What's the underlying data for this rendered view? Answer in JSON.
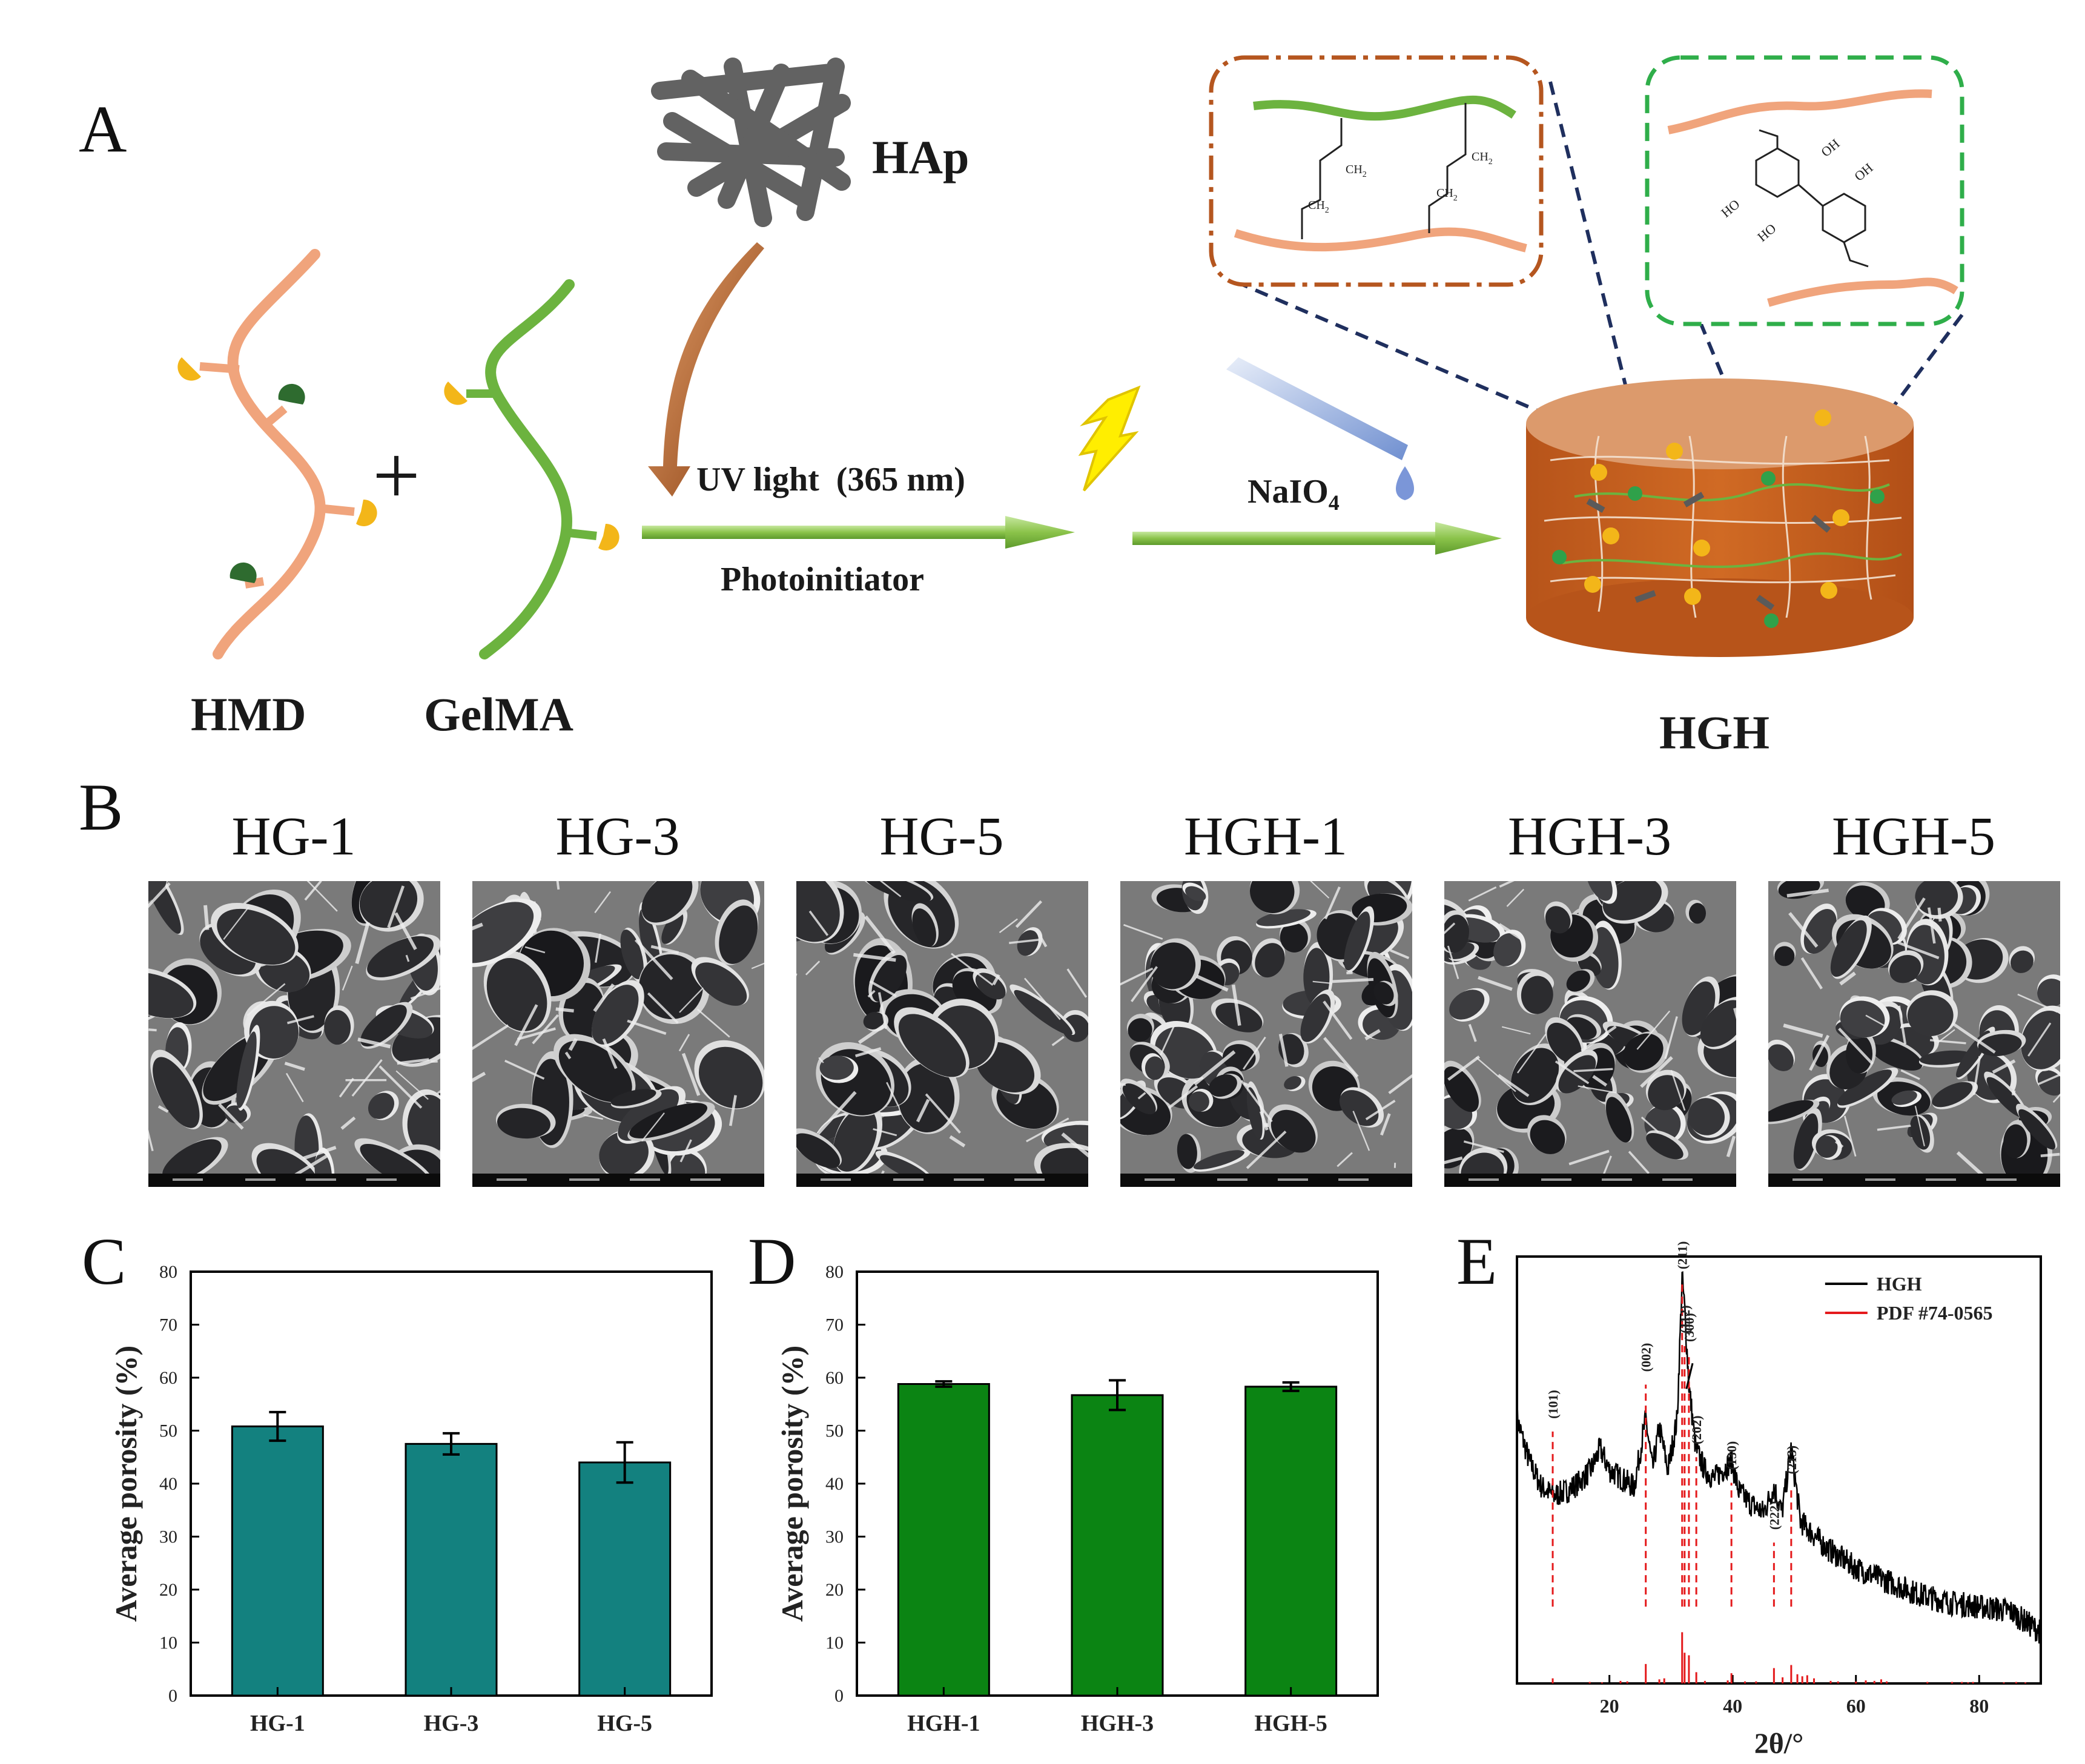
{
  "panels": {
    "a": "A",
    "b": "B",
    "c": "C",
    "d": "D",
    "e": "E"
  },
  "scheme": {
    "hap": "HAp",
    "hmd": "HMD",
    "gelma": "GelMA",
    "hgh": "HGH",
    "plus": "+",
    "uv_light": "UV light  (365 nm)",
    "photoinitiator": "Photoinitiator",
    "naio4_base": "NaIO",
    "naio4_sub": "4",
    "ch2": "CH",
    "ch2_sub": "2",
    "oh": "OH",
    "ho": "HO",
    "colors": {
      "hmd": "#f0a47c",
      "gelma": "#6cb33f",
      "gel_body": "#c9611e",
      "gel_top": "#dc9a6c",
      "arrow": "#8bc34a",
      "brown_box": "#b5561f",
      "green_box": "#2fae4a",
      "navy_dash": "#1f2f5e"
    }
  },
  "sem_images": [
    {
      "label": "HG-1"
    },
    {
      "label": "HG-3"
    },
    {
      "label": "HG-5"
    },
    {
      "label": "HGH-1"
    },
    {
      "label": "HGH-3"
    },
    {
      "label": "HGH-5"
    }
  ],
  "chart_data": [
    {
      "type": "bar",
      "panel": "C",
      "categories": [
        "HG-1",
        "HG-3",
        "HG-5"
      ],
      "values": [
        50.8,
        47.5,
        44.0
      ],
      "errors": [
        2.7,
        2.0,
        3.8
      ],
      "ylabel": "Average porosity (%)",
      "ylim": [
        0,
        80
      ],
      "yticks": [
        0,
        10,
        20,
        30,
        40,
        50,
        60,
        70,
        80
      ],
      "color": "#13817f"
    },
    {
      "type": "bar",
      "panel": "D",
      "categories": [
        "HGH-1",
        "HGH-3",
        "HGH-5"
      ],
      "values": [
        58.8,
        56.7,
        58.3
      ],
      "errors": [
        0.5,
        2.8,
        0.8
      ],
      "ylabel": "Average porosity (%)",
      "ylim": [
        0,
        80
      ],
      "yticks": [
        0,
        10,
        20,
        30,
        40,
        50,
        60,
        70,
        80
      ],
      "color": "#0b8413"
    },
    {
      "type": "line",
      "panel": "E",
      "xlabel": "2θ/°",
      "xlim": [
        5,
        90
      ],
      "xticks": [
        20,
        40,
        60,
        80
      ],
      "legend": [
        {
          "name": "HGH",
          "color": "#000000"
        },
        {
          "name": "PDF #74-0565",
          "color": "#e41a1c"
        }
      ],
      "legend_position": "top-right",
      "series": [
        {
          "name": "HGH",
          "x": [
            5,
            7,
            9,
            11,
            13,
            15,
            17,
            18.5,
            20,
            22,
            24,
            25.9,
            27,
            28.1,
            29.5,
            31,
            31.8,
            32.2,
            32.9,
            34,
            35.5,
            37,
            39.8,
            41,
            43,
            45,
            46.7,
            48,
            49.5,
            51,
            53,
            55,
            60,
            65,
            70,
            75,
            80,
            85,
            90
          ],
          "y": [
            0.62,
            0.52,
            0.46,
            0.44,
            0.45,
            0.47,
            0.5,
            0.55,
            0.5,
            0.48,
            0.46,
            0.62,
            0.5,
            0.6,
            0.5,
            0.62,
            0.95,
            0.88,
            0.7,
            0.55,
            0.5,
            0.48,
            0.52,
            0.45,
            0.42,
            0.4,
            0.46,
            0.4,
            0.55,
            0.38,
            0.35,
            0.32,
            0.27,
            0.24,
            0.21,
            0.19,
            0.18,
            0.17,
            0.12
          ]
        },
        {
          "name": "PDF #74-0565",
          "type": "stick",
          "x": [
            10.8,
            16.8,
            18.8,
            21.8,
            22.9,
            25.9,
            28.1,
            28.9,
            31.8,
            32.2,
            32.9,
            34.1,
            35.5,
            39.2,
            39.8,
            42.0,
            43.8,
            46.7,
            48.1,
            49.5,
            50.5,
            51.3,
            52.1,
            53.2,
            55.9,
            57.1,
            60.0,
            61.6,
            63.0,
            64.1,
            65.0,
            71.6,
            75.6,
            77.2,
            78.2,
            79.0,
            84.0,
            86.0,
            87.5
          ],
          "y": [
            0.1,
            0.03,
            0.02,
            0.05,
            0.04,
            0.38,
            0.08,
            0.1,
            1.0,
            0.6,
            0.55,
            0.22,
            0.05,
            0.06,
            0.2,
            0.04,
            0.04,
            0.3,
            0.12,
            0.36,
            0.18,
            0.14,
            0.16,
            0.1,
            0.05,
            0.04,
            0.04,
            0.06,
            0.05,
            0.08,
            0.04,
            0.03,
            0.03,
            0.03,
            0.02,
            0.03,
            0.02,
            0.03,
            0.02
          ]
        }
      ],
      "annotations": [
        {
          "label": "(101)",
          "x": 10.8
        },
        {
          "label": "(002)",
          "x": 25.9
        },
        {
          "label": "(211)",
          "x": 31.8
        },
        {
          "label": "(112)",
          "x": 32.2
        },
        {
          "label": "(300)",
          "x": 32.9
        },
        {
          "label": "(202)",
          "x": 34.1
        },
        {
          "label": "(130)",
          "x": 39.8
        },
        {
          "label": "(222)",
          "x": 46.7
        },
        {
          "label": "(213)",
          "x": 49.5
        }
      ]
    }
  ]
}
